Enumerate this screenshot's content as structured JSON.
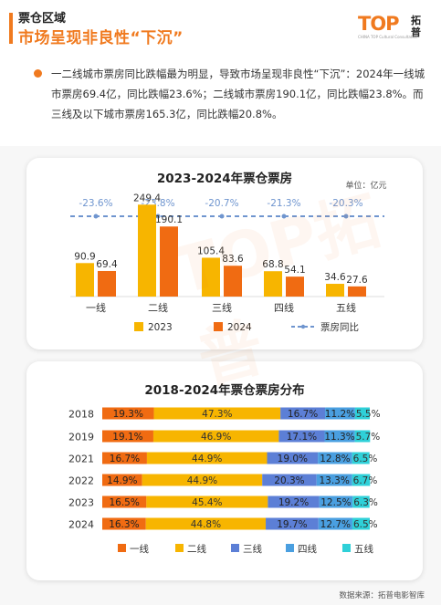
{
  "header": {
    "title_small": "票仓区域",
    "title_main": "市场呈现非良性“下沉”",
    "logo_text": "TOP",
    "logo_cn": "拓普",
    "logo_sub": "CHINA TOP Cultural Consultation"
  },
  "summary": {
    "text": "一二线城市票房同比跌幅最为明显，导致市场呈现非良性“下沉”：2024年一线城市票房69.4亿，同比跌幅23.6%；二线城市票房190.1亿，同比跌幅23.8%。而三线及以下城市票房165.3亿，同比跌幅20.8%。"
  },
  "watermark": "TOP拓普",
  "chart_data": [
    {
      "type": "bar",
      "title": "2023-2024年票仓票房",
      "unit_label": "单位：亿元",
      "categories": [
        "一线",
        "二线",
        "三线",
        "四线",
        "五线"
      ],
      "series": [
        {
          "name": "2023",
          "color": "#f7b500",
          "values": [
            90.9,
            249.4,
            105.4,
            68.8,
            34.6
          ]
        },
        {
          "name": "2024",
          "color": "#f06b12",
          "values": [
            69.4,
            190.1,
            83.6,
            54.1,
            27.6
          ]
        }
      ],
      "yoy": {
        "name": "票房同比",
        "color": "#6f95cf",
        "labels": [
          "-23.6%",
          "-23.8%",
          "-20.7%",
          "-21.3%",
          "-20.3%"
        ]
      },
      "ylim": [
        0,
        260
      ],
      "legend": "bottom"
    },
    {
      "type": "bar",
      "stacked": true,
      "normalized": true,
      "title": "2018-2024年票仓票房分布",
      "categories": [
        "2018",
        "2019",
        "2021",
        "2022",
        "2023",
        "2024"
      ],
      "series": [
        {
          "name": "一线",
          "color": "#f06b12",
          "values": [
            19.3,
            19.1,
            16.7,
            14.9,
            16.5,
            16.3
          ]
        },
        {
          "name": "二线",
          "color": "#f7b500",
          "values": [
            47.3,
            46.9,
            44.9,
            44.9,
            45.4,
            44.8
          ]
        },
        {
          "name": "三线",
          "color": "#5c7fd6",
          "values": [
            16.7,
            17.1,
            19.0,
            20.3,
            19.2,
            19.7
          ]
        },
        {
          "name": "四线",
          "color": "#4a9fe0",
          "values": [
            11.2,
            11.3,
            12.8,
            13.3,
            12.5,
            12.7
          ]
        },
        {
          "name": "五线",
          "color": "#2fd0d8",
          "values": [
            5.5,
            5.7,
            6.5,
            6.7,
            6.3,
            6.5
          ]
        }
      ],
      "legend": "bottom"
    }
  ],
  "source": "数据来源：拓普电影智库"
}
